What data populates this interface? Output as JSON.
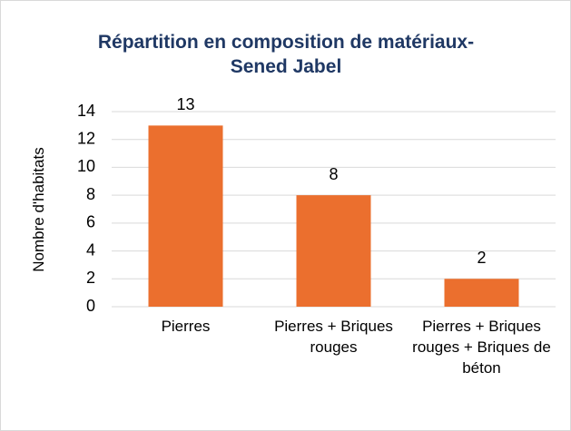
{
  "chart_data": {
    "type": "bar",
    "title": "Répartition en composition de matériaux-Sened Jabel",
    "ylabel": "Nombre d'habitats",
    "categories": [
      "Pierres",
      "Pierres + Briques rouges",
      "Pierres + Briques rouges + Briques de béton"
    ],
    "values": [
      13,
      8,
      2
    ],
    "color": "#eb6f2e",
    "ylim": [
      0,
      14
    ],
    "yticks": [
      0,
      2,
      4,
      6,
      8,
      10,
      12,
      14
    ],
    "grid": true
  }
}
